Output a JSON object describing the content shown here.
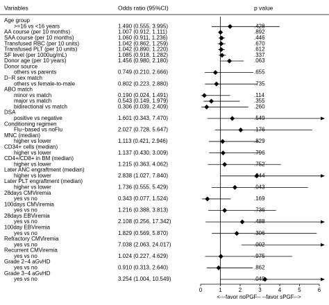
{
  "chart_data": {
    "type": "forest",
    "headers": [
      "Variables",
      "Odds ratio (95%CI)",
      "p value"
    ],
    "xlim": [
      0,
      6
    ],
    "xticks": [
      0,
      1,
      2,
      3,
      4,
      5,
      6
    ],
    "reference_line": 1,
    "color": "#000000",
    "footnote": "<---favor noPGF-- --favor sPGF-->",
    "rows": [
      {
        "label": "Age group",
        "items": [
          {
            "label": ">=16 vs <16 years",
            "value": 1.49,
            "lower": 0.555,
            "upper": 3.995,
            "value_label": "1.490 (0.555, 3.995)",
            "p": ".428"
          }
        ]
      },
      {
        "label": "AA course (per 10 months)",
        "value": 1.007,
        "lower": 0.912,
        "upper": 1.111,
        "value_label": "1.007 (0.912, 1.111)",
        "p": ".892"
      },
      {
        "label": "SAA course (per 10 months)",
        "value": 1.06,
        "lower": 0.911,
        "upper": 1.236,
        "value_label": "1.060 (0.911, 1.236)",
        "p": ".446"
      },
      {
        "label": "Transfused RBC (per 10 units)",
        "value": 1.042,
        "lower": 0.862,
        "upper": 1.259,
        "value_label": "1.042 (0.862, 1.259)",
        "p": ".670"
      },
      {
        "label": "Transfused PLT (per 10 units)",
        "value": 1.042,
        "lower": 0.89,
        "upper": 1.22,
        "value_label": "1.042 (0.890, 1.220)",
        "p": ".612"
      },
      {
        "label": "SF level (per 1000ug/mL)",
        "value": 1.085,
        "lower": 0.918,
        "upper": 1.282,
        "value_label": "1.085 (0.918, 1.282)",
        "p": ".337"
      },
      {
        "label": "Donor age (per 10 years)",
        "value": 1.456,
        "lower": 0.98,
        "upper": 2.18,
        "value_label": "1.456 (0.980, 2.180)",
        "p": ".063"
      },
      {
        "label": "Donor source",
        "items": [
          {
            "label": "others vs parents",
            "value": 0.749,
            "lower": 0.21,
            "upper": 2.666,
            "value_label": "0.749 (0.210, 2.666)",
            "p": ".655"
          }
        ]
      },
      {
        "label": "D−R sex match",
        "items": [
          {
            "label": "others vs female-to-male",
            "value": 0.802,
            "lower": 0.223,
            "upper": 2.88,
            "value_label": "0.802 (0.223, 2.880)",
            "p": ".735"
          }
        ]
      },
      {
        "label": "ABO match",
        "items": [
          {
            "label": "minor vs match",
            "value": 0.19,
            "lower": 0.024,
            "upper": 1.491,
            "value_label": "0.190 (0.024, 1.491)",
            "p": ".114"
          },
          {
            "label": "major vs match",
            "value": 0.543,
            "lower": 0.149,
            "upper": 1.979,
            "value_label": "0.543 (0.149, 1.979)",
            "p": ".355"
          },
          {
            "label": "bidirectional vs match",
            "value": 0.306,
            "lower": 0.039,
            "upper": 2.409,
            "value_label": "0.306 (0.039, 2.409)",
            "p": ".260"
          }
        ]
      },
      {
        "label": "DSA",
        "items": [
          {
            "label": "positive vs negative",
            "value": 1.601,
            "lower": 0.343,
            "upper": 7.47,
            "value_label": "1.601 (0.343, 7.470)",
            "p": ".549"
          }
        ]
      },
      {
        "label": "Conditioning regimen",
        "items": [
          {
            "label": "Flu−based vs noFlu",
            "value": 2.027,
            "lower": 0.728,
            "upper": 5.647,
            "value_label": "2.027 (0.728, 5.647)",
            "p": ".176"
          }
        ]
      },
      {
        "label": "MNC (median)",
        "items": [
          {
            "label": "higher vs lower",
            "value": 1.113,
            "lower": 0.421,
            "upper": 2.946,
            "value_label": "1.113 (0.421, 2.946)",
            "p": ".829"
          }
        ]
      },
      {
        "label": "CD34+ cells (median)",
        "items": [
          {
            "label": "higher vs lower",
            "value": 1.137,
            "lower": 0.43,
            "upper": 3.009,
            "value_label": "1.137 (0.430, 3.009)",
            "p": ".796"
          }
        ]
      },
      {
        "label": "CD4+/CD8+ in BM (median)",
        "items": [
          {
            "label": "higher vs lower",
            "value": 1.215,
            "lower": 0.363,
            "upper": 4.062,
            "value_label": "1.215 (0.363, 4.062)",
            "p": ".752"
          }
        ]
      },
      {
        "label": "Later ANC engraftment (median)",
        "items": [
          {
            "label": "higher vs lower",
            "value": 2.838,
            "lower": 1.027,
            "upper": 7.84,
            "value_label": "2.838 (1.027, 7.840)",
            "p": ".044"
          }
        ]
      },
      {
        "label": "Later PLT engraftment (median)",
        "items": [
          {
            "label": "higher vs lower",
            "value": 1.736,
            "lower": 0.555,
            "upper": 5.429,
            "value_label": "1.736 (0.555, 5.429)",
            "p": ".043"
          }
        ]
      },
      {
        "label": "28days CMViremia",
        "items": [
          {
            "label": "yes vs no",
            "value": 0.343,
            "lower": 0.077,
            "upper": 1.524,
            "value_label": "0.343 (0.077, 1.524)",
            "p": ".169"
          }
        ]
      },
      {
        "label": "100days CMViremia",
        "items": [
          {
            "label": "yes vs no",
            "value": 1.216,
            "lower": 0.388,
            "upper": 3.813,
            "value_label": "1.216 (0.388, 3.813)",
            "p": ".736"
          }
        ]
      },
      {
        "label": "28days EBViremia",
        "items": [
          {
            "label": "yes vs no",
            "value": 2.108,
            "lower": 0.256,
            "upper": 17.342,
            "value_label": "2.108 (0.256, 17.342)",
            "p": ".488"
          }
        ]
      },
      {
        "label": "100day EBViremia",
        "items": [
          {
            "label": "yes vs no",
            "value": 1.829,
            "lower": 0.569,
            "upper": 5.87,
            "value_label": "1.829 (0.569, 5.870)",
            "p": ".306"
          }
        ]
      },
      {
        "label": "Refractory CMViremia",
        "items": [
          {
            "label": "yes vs no",
            "value": 7.038,
            "lower": 2.063,
            "upper": 24.017,
            "value_label": "7.038 (2.063, 24.017)",
            "p": ".002"
          }
        ]
      },
      {
        "label": "Recurrent CMViremia",
        "items": [
          {
            "label": "yes vs no",
            "value": 1.024,
            "lower": 0.227,
            "upper": 4.629,
            "value_label": "1.024 (0.227, 4.629)",
            "p": ".975"
          }
        ]
      },
      {
        "label": "Grade 2−4 aGvHD",
        "items": [
          {
            "label": "yes vs no",
            "value": 0.91,
            "lower": 0.313,
            "upper": 2.64,
            "value_label": "0.910 (0.313, 2.640)",
            "p": ".862"
          }
        ]
      },
      {
        "label": "Grade 3−4 aGvHD",
        "items": [
          {
            "label": "yes vs no",
            "value": 3.254,
            "lower": 1.004,
            "upper": 10.549,
            "value_label": "3.254 (1.004, 10.549)",
            "p": ".049"
          }
        ]
      }
    ]
  }
}
